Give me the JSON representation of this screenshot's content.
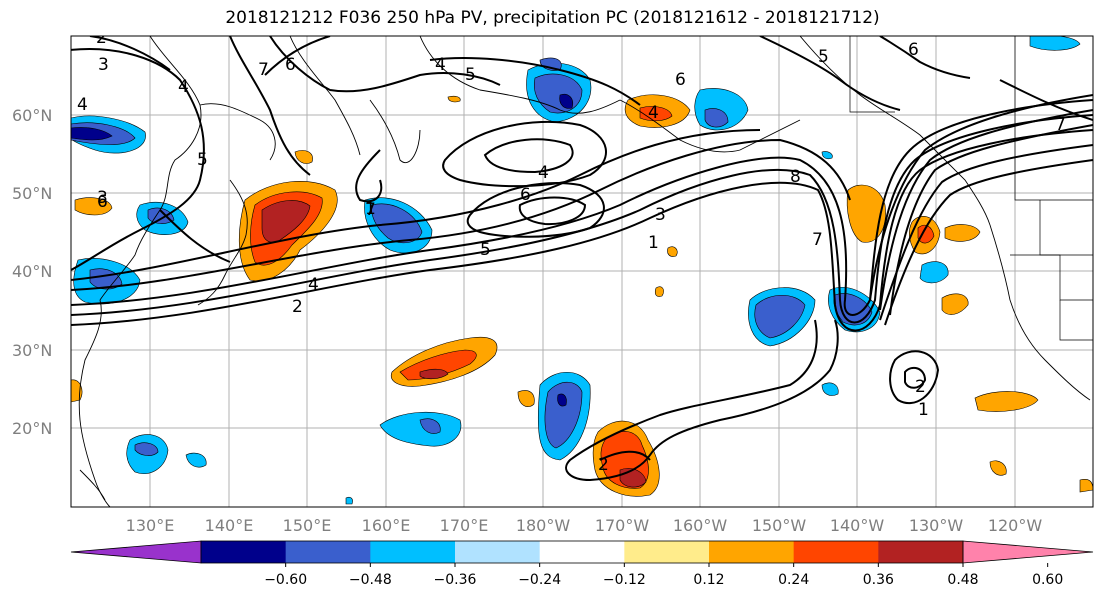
{
  "title": "2018121212 F036 250 hPa PV, precipitation PC (2018121612 - 2018121712)",
  "lat_labels": [
    "60°N",
    "50°N",
    "40°N",
    "30°N",
    "20°N"
  ],
  "lon_labels": [
    "130°E",
    "140°E",
    "150°E",
    "160°E",
    "170°E",
    "180°W",
    "170°W",
    "160°W",
    "150°W",
    "140°W",
    "130°W",
    "120°W"
  ],
  "colorbar": {
    "colors": [
      "#9932cc",
      "#00008b",
      "#3a5fcd",
      "#00bfff",
      "#b0e2ff",
      "#ffffff",
      "#ffec8b",
      "#ffa500",
      "#ff4500",
      "#b22222",
      "#ff82ab"
    ],
    "tick_labels": [
      "−0.60",
      "−0.48",
      "−0.36",
      "−0.24",
      "−0.12",
      "0.12",
      "0.24",
      "0.36",
      "0.48",
      "0.60"
    ]
  },
  "contour_labels": [
    "2",
    "3",
    "4",
    "4",
    "5",
    "6",
    "6",
    "7",
    "7",
    "4",
    "5",
    "6",
    "4",
    "3",
    "3",
    "2",
    "4",
    "5",
    "6",
    "1",
    "4",
    "8",
    "7",
    "2",
    "1",
    "5",
    "6",
    "7",
    "1",
    "2"
  ]
}
